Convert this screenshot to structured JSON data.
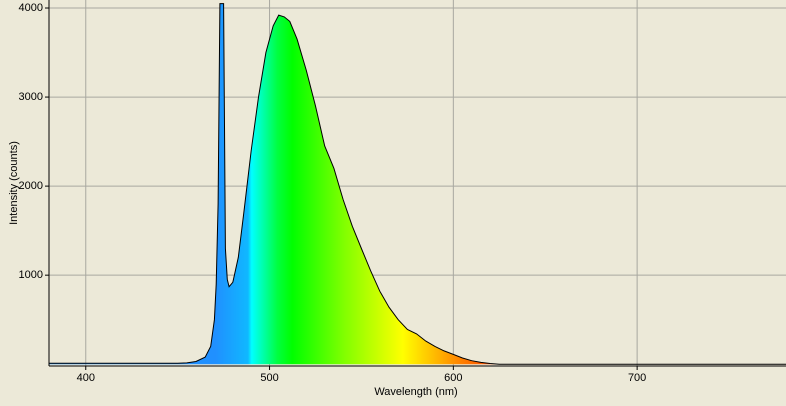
{
  "chart_data": {
    "type": "area",
    "xlabel": "Wavelength (nm)",
    "ylabel": "Intensity (counts)",
    "x": [
      380,
      400,
      420,
      440,
      450,
      455,
      460,
      465,
      468,
      470,
      471,
      472,
      473,
      474,
      475,
      476,
      477,
      478,
      480,
      483,
      486,
      490,
      494,
      498,
      502,
      505,
      508,
      511,
      515,
      520,
      525,
      530,
      535,
      540,
      545,
      550,
      555,
      560,
      565,
      570,
      575,
      580,
      585,
      590,
      595,
      600,
      605,
      610,
      615,
      620,
      625,
      650,
      700,
      781
    ],
    "values": [
      10,
      10,
      10,
      10,
      12,
      15,
      30,
      80,
      200,
      500,
      900,
      1800,
      4050,
      4050,
      4050,
      1300,
      950,
      870,
      920,
      1200,
      1700,
      2400,
      3000,
      3500,
      3800,
      3920,
      3900,
      3850,
      3650,
      3300,
      2900,
      2450,
      2200,
      1850,
      1550,
      1300,
      1050,
      820,
      640,
      500,
      390,
      340,
      260,
      200,
      150,
      110,
      70,
      40,
      20,
      8,
      0,
      0,
      0,
      0
    ],
    "color": "#000000",
    "xlim": [
      380,
      781
    ],
    "ylim": [
      -20,
      4090
    ],
    "xticks": [
      400,
      500,
      600,
      700
    ],
    "yticks": [
      1000,
      2000,
      3000,
      4000
    ],
    "grid": true
  }
}
